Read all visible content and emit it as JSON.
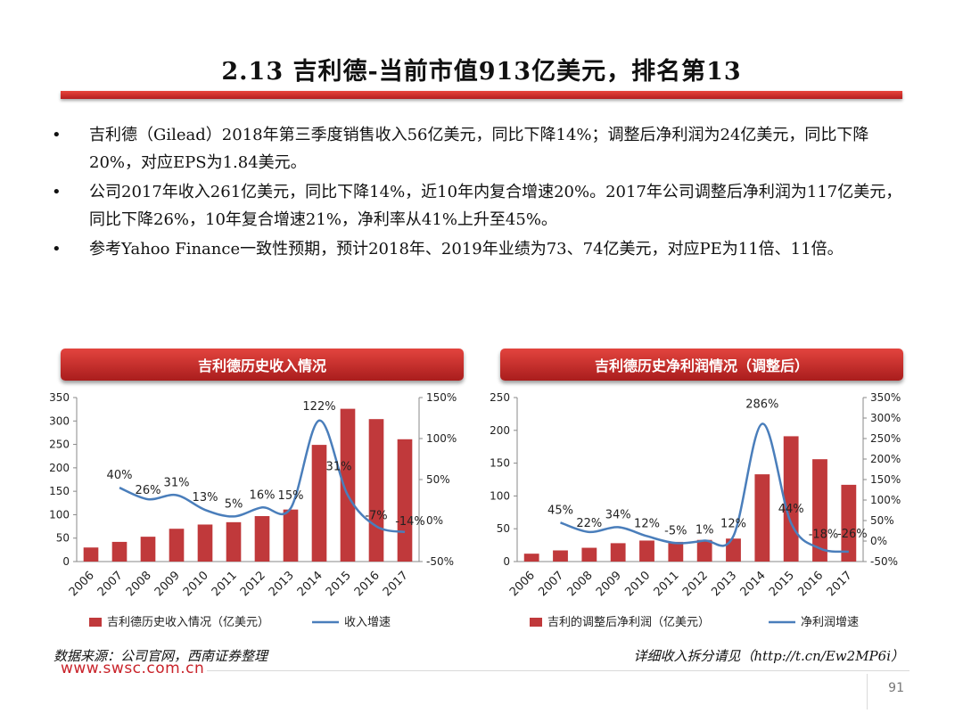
{
  "title": "2.13 吉利德-当前市值913亿美元，排名第13",
  "bullet_symbol": "•",
  "bullets": [
    "吉利德（Gilead）2018年第三季度销售收入56亿美元，同比下降14%；调整后净利润为24亿美元，同比下降20%，对应EPS为1.84美元。",
    "公司2017年收入261亿美元，同比下降14%，近10年内复合增速20%。2017年公司调整后净利润为117亿美元，同比下降26%，10年复合增速21%，净利率从41%上升至45%。",
    "参考Yahoo Finance一致性预期，预计2018年、2019年业绩为73、74亿美元，对应PE为11倍、11倍。"
  ],
  "left_panel_title": "吉利德历史收入情况",
  "right_panel_title": "吉利德历史净利润情况（调整后）",
  "source_text": "数据来源：公司官网，西南证券整理",
  "detail_text": "详细收入拆分请见（http://t.cn/Ew2MP6i）",
  "site_url": "www.swsc.com.cn",
  "page_number": "91",
  "colors": {
    "bar": "#c0393b",
    "line": "#4a7ebb",
    "accent": "#c9232a"
  },
  "chart_data": [
    {
      "type": "bar",
      "categories": [
        "2006",
        "2007",
        "2008",
        "2009",
        "2010",
        "2011",
        "2012",
        "2013",
        "2014",
        "2015",
        "2016",
        "2017"
      ],
      "series": [
        {
          "name": "吉利德历史收入情况（亿美元）",
          "axis": "left",
          "type": "bar",
          "values": [
            30,
            42,
            53,
            70,
            79,
            84,
            97,
            111,
            249,
            326,
            304,
            261
          ]
        },
        {
          "name": "收入增速",
          "axis": "right",
          "type": "line",
          "values": [
            null,
            40,
            26,
            31,
            13,
            5,
            16,
            15,
            122,
            31,
            -7,
            -14
          ],
          "labels": [
            "",
            "40%",
            "26%",
            "31%",
            "13%",
            "5%",
            "16%",
            "15%",
            "122%",
            "31%",
            "-7%",
            "-14%"
          ]
        }
      ],
      "ylim_left": [
        0,
        350
      ],
      "yticks_left": [
        "0",
        "50",
        "100",
        "150",
        "200",
        "250",
        "300",
        "350"
      ],
      "ylim_right": [
        -50,
        150
      ],
      "yticks_right": [
        "-50%",
        "0%",
        "50%",
        "100%",
        "150%"
      ]
    },
    {
      "type": "bar",
      "categories": [
        "2006",
        "2007",
        "2008",
        "2009",
        "2010",
        "2011",
        "2012",
        "2013",
        "2014",
        "2015",
        "2016",
        "2017"
      ],
      "series": [
        {
          "name": "吉利的调整后净利润（亿美元）",
          "axis": "left",
          "type": "bar",
          "values": [
            12,
            17,
            21,
            28,
            32,
            30,
            33,
            35,
            133,
            191,
            156,
            117
          ]
        },
        {
          "name": "净利润增速",
          "axis": "right",
          "type": "line",
          "values": [
            null,
            45,
            22,
            34,
            12,
            -5,
            1,
            12,
            286,
            44,
            -18,
            -26
          ],
          "labels": [
            "",
            "45%",
            "22%",
            "34%",
            "12%",
            "-5%",
            "1%",
            "12%",
            "286%",
            "44%",
            "-18%",
            "-26%"
          ]
        }
      ],
      "ylim_left": [
        0,
        250
      ],
      "yticks_left": [
        "0",
        "50",
        "100",
        "150",
        "200",
        "250"
      ],
      "ylim_right": [
        -50,
        350
      ],
      "yticks_right": [
        "-50%",
        "0%",
        "50%",
        "100%",
        "150%",
        "200%",
        "250%",
        "300%",
        "350%"
      ]
    }
  ]
}
